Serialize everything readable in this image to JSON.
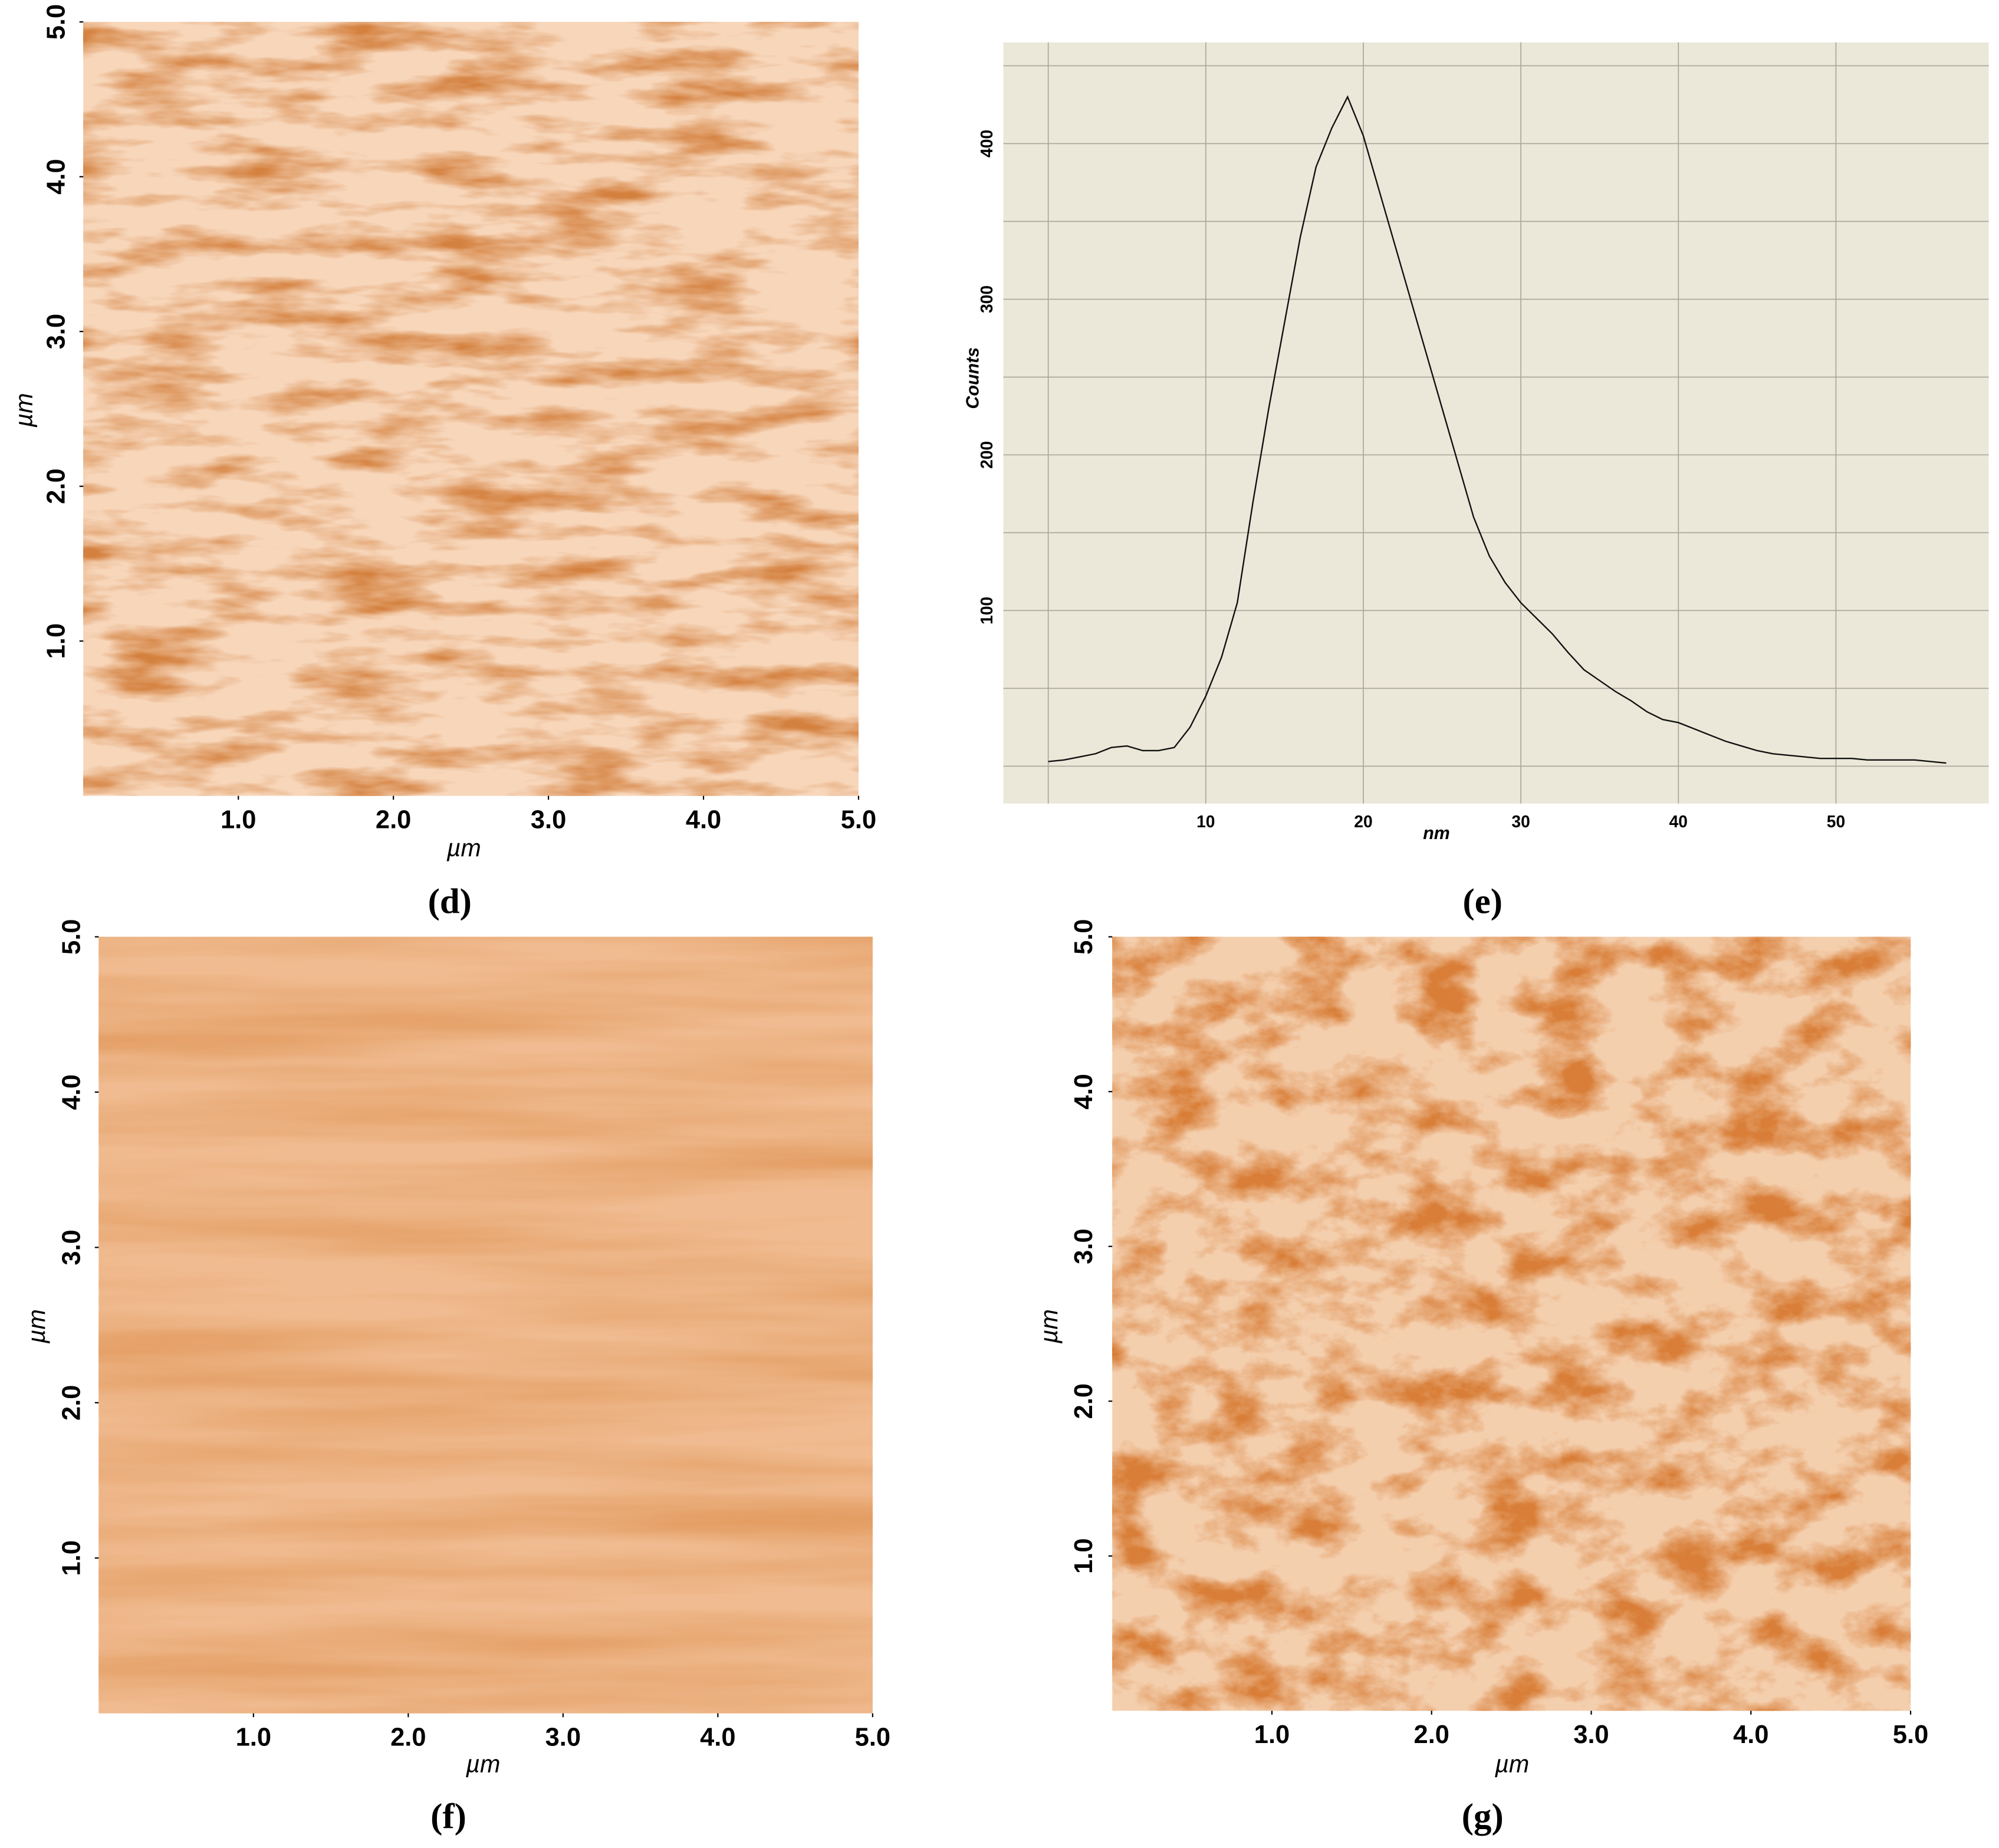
{
  "chart_data": [
    {
      "type": "afm-image",
      "panel": "(d)",
      "xlabel": "µm",
      "ylabel": "µm",
      "base_color": "#f7d6ba",
      "texture_color": "#a8380c",
      "xlim": [
        0,
        5
      ],
      "ylim": [
        0,
        5
      ],
      "xticks": [
        {
          "value": 1,
          "label": "1.0"
        },
        {
          "value": 2,
          "label": "2.0"
        },
        {
          "value": 3,
          "label": "3.0"
        },
        {
          "value": 4,
          "label": "4.0"
        },
        {
          "value": 5,
          "label": "5.0"
        }
      ],
      "yticks": [
        {
          "value": 1,
          "label": "1.0"
        },
        {
          "value": 2,
          "label": "2.0"
        },
        {
          "value": 3,
          "label": "3.0"
        },
        {
          "value": 4,
          "label": "4.0"
        },
        {
          "value": 5,
          "label": "5.0"
        }
      ]
    },
    {
      "type": "line",
      "panel": "(e)",
      "xlabel": "nm",
      "ylabel": "Counts",
      "color": "#111111",
      "background": "#ece8d9",
      "xlim": [
        -2.85,
        59.7
      ],
      "ylim": [
        -24,
        465
      ],
      "xticks": [
        10,
        20,
        30,
        40,
        50
      ],
      "yticks": [
        100,
        200,
        300,
        400
      ],
      "xgrid": [
        0,
        10,
        20,
        30,
        40,
        50
      ],
      "ygrid": [
        0,
        50,
        100,
        150,
        200,
        250,
        300,
        350,
        400,
        450
      ],
      "x": [
        0,
        1,
        2,
        3,
        4,
        5,
        6,
        7,
        8,
        9,
        10,
        11,
        12,
        13,
        14,
        15,
        16,
        17,
        18,
        19,
        20,
        21,
        22,
        23,
        24,
        25,
        26,
        27,
        28,
        29,
        30,
        31,
        32,
        33,
        34,
        35,
        36,
        37,
        38,
        39,
        40,
        41,
        42,
        43,
        44,
        45,
        46,
        47,
        48,
        49,
        50,
        51,
        52,
        53,
        54,
        55,
        56,
        57
      ],
      "values": [
        3,
        4,
        6,
        8,
        12,
        13,
        10,
        10,
        12,
        25,
        45,
        70,
        105,
        170,
        230,
        285,
        340,
        385,
        410,
        430,
        405,
        370,
        335,
        300,
        265,
        230,
        195,
        160,
        135,
        118,
        105,
        95,
        85,
        73,
        62,
        55,
        48,
        42,
        35,
        30,
        28,
        24,
        20,
        16,
        13,
        10,
        8,
        7,
        6,
        5,
        5,
        5,
        4,
        4,
        4,
        4,
        3,
        2
      ]
    },
    {
      "type": "afm-image",
      "panel": "(f)",
      "xlabel": "µm",
      "ylabel": "µm",
      "base_color": "#f0bb90",
      "texture_color": "#c0501a",
      "xlim": [
        0,
        5
      ],
      "ylim": [
        0,
        5
      ],
      "xticks": [
        {
          "value": 1,
          "label": "1.0"
        },
        {
          "value": 2,
          "label": "2.0"
        },
        {
          "value": 3,
          "label": "3.0"
        },
        {
          "value": 4,
          "label": "4.0"
        },
        {
          "value": 5,
          "label": "5.0"
        }
      ],
      "yticks": [
        {
          "value": 1,
          "label": "1.0"
        },
        {
          "value": 2,
          "label": "2.0"
        },
        {
          "value": 3,
          "label": "3.0"
        },
        {
          "value": 4,
          "label": "4.0"
        },
        {
          "value": 5,
          "label": "5.0"
        }
      ]
    },
    {
      "type": "afm-image",
      "panel": "(g)",
      "xlabel": "µm",
      "ylabel": "µm",
      "base_color": "#f4cfae",
      "texture_color": "#b0360a",
      "xlim": [
        0,
        5
      ],
      "ylim": [
        0,
        5
      ],
      "xticks": [
        {
          "value": 1,
          "label": "1.0"
        },
        {
          "value": 2,
          "label": "2.0"
        },
        {
          "value": 3,
          "label": "3.0"
        },
        {
          "value": 4,
          "label": "4.0"
        },
        {
          "value": 5,
          "label": "5.0"
        }
      ],
      "yticks": [
        {
          "value": 1,
          "label": "1.0"
        },
        {
          "value": 2,
          "label": "2.0"
        },
        {
          "value": 3,
          "label": "3.0"
        },
        {
          "value": 4,
          "label": "4.0"
        },
        {
          "value": 5,
          "label": "5.0"
        }
      ]
    }
  ]
}
